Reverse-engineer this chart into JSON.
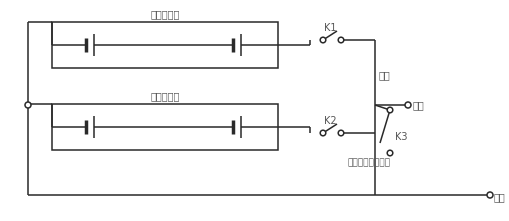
{
  "bg_color": "#ffffff",
  "line_color": "#2a2a2a",
  "text_color": "#555555",
  "fig_width": 5.1,
  "fig_height": 2.21,
  "dpi": 100,
  "labels": {
    "battery1": "第一电池组",
    "battery2": "第二电池组",
    "K1": "K1",
    "K2": "K2",
    "K3": "K3",
    "zongzheng": "总正",
    "fuzai": "负载",
    "chongdian": "充电接口（总正）",
    "zongfu": "总负"
  }
}
